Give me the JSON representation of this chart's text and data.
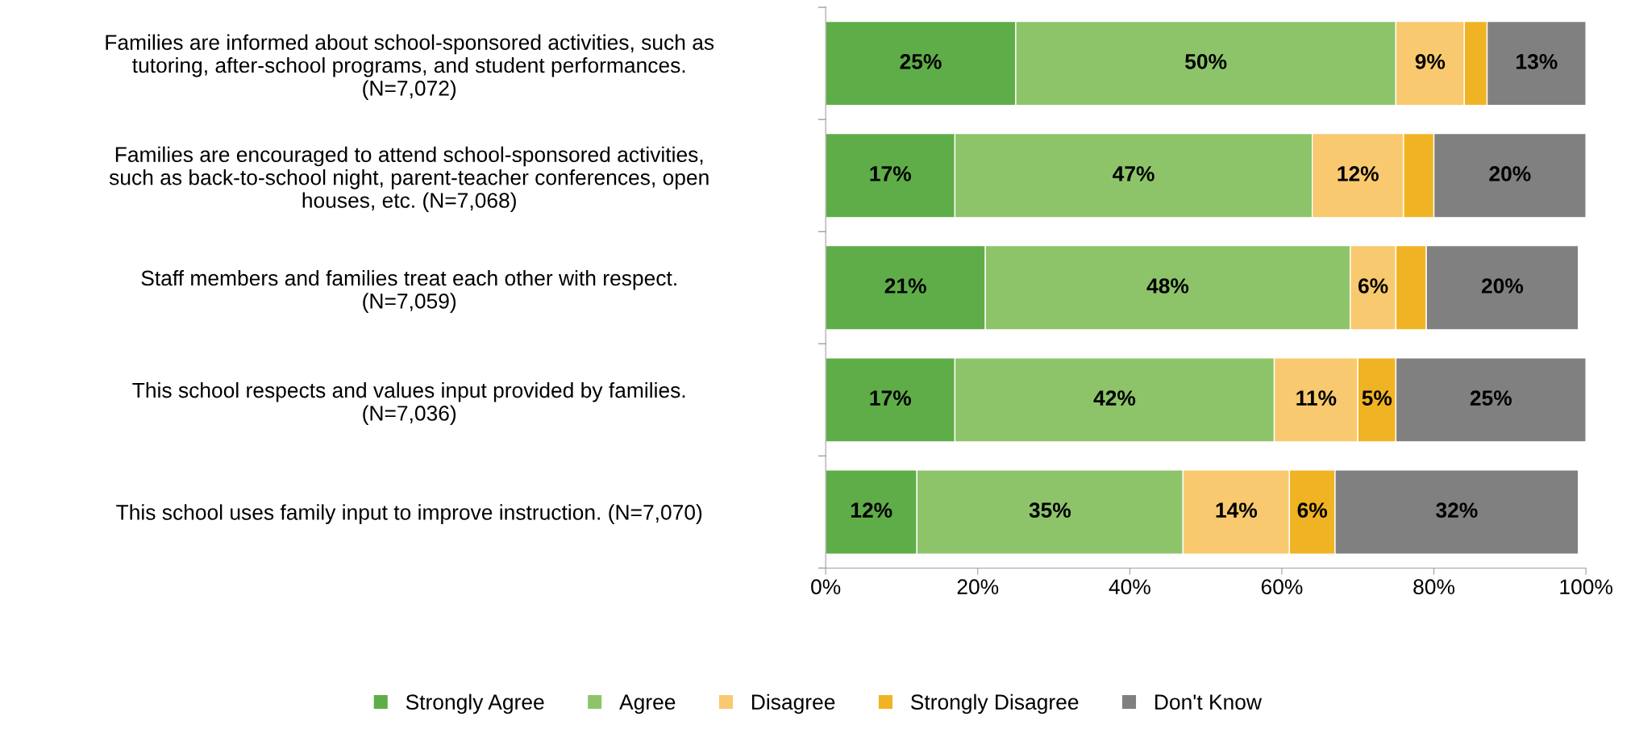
{
  "chart_data": {
    "type": "bar",
    "orientation": "horizontal",
    "stacked": true,
    "categories": [
      "Families are informed about school-sponsored activities, such as\ntutoring, after-school programs, and student performances.\n(N=7,072)",
      "Families are encouraged to attend school-sponsored activities,\nsuch as back-to-school night, parent-teacher conferences, open\nhouses, etc. (N=7,068)",
      "Staff members and families treat each other with respect.\n(N=7,059)",
      "This school respects and values input provided by families.\n(N=7,036)",
      "This school uses family input to improve instruction. (N=7,070)"
    ],
    "series": [
      {
        "name": "Strongly Agree",
        "color": "#5fad48",
        "values": [
          25,
          17,
          21,
          17,
          12
        ],
        "value_labels": [
          "25%",
          "17%",
          "21%",
          "17%",
          "12%"
        ]
      },
      {
        "name": "Agree",
        "color": "#8dc46a",
        "values": [
          50,
          47,
          48,
          42,
          35
        ],
        "value_labels": [
          "50%",
          "47%",
          "48%",
          "42%",
          "35%"
        ]
      },
      {
        "name": "Disagree",
        "color": "#f8c96e",
        "values": [
          9,
          12,
          6,
          11,
          14
        ],
        "value_labels": [
          "9%",
          "12%",
          "6%",
          "11%",
          "14%"
        ]
      },
      {
        "name": "Strongly Disagree",
        "color": "#f0b323",
        "values": [
          3,
          4,
          4,
          5,
          6
        ],
        "value_labels": [
          null,
          null,
          null,
          "5%",
          "6%"
        ]
      },
      {
        "name": "Don't Know",
        "color": "#808080",
        "values": [
          13,
          20,
          20,
          25,
          32
        ],
        "value_labels": [
          "13%",
          "20%",
          "20%",
          "25%",
          "32%"
        ]
      }
    ],
    "xlim": [
      0,
      100
    ],
    "xticks": [
      {
        "value": 0,
        "label": "0%"
      },
      {
        "value": 20,
        "label": "20%"
      },
      {
        "value": 40,
        "label": "40%"
      },
      {
        "value": 60,
        "label": "60%"
      },
      {
        "value": 80,
        "label": "80%"
      },
      {
        "value": 100,
        "label": "100%"
      }
    ],
    "grid": false,
    "legend": "bottom"
  }
}
